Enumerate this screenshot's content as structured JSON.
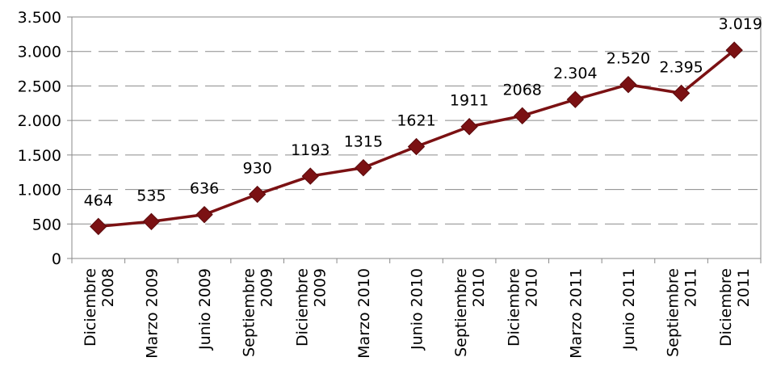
{
  "chart_data": {
    "type": "line",
    "title": "",
    "xlabel": "",
    "ylabel": "",
    "ylim": [
      0,
      3500
    ],
    "y_ticks": [
      0,
      500,
      1000,
      1500,
      2000,
      2500,
      3000,
      3500
    ],
    "y_tick_labels": [
      "0",
      "500",
      "1.000",
      "1.500",
      "2.000",
      "2.500",
      "3.000",
      "3.500"
    ],
    "grid": "horizontal dashed",
    "legend": "none",
    "marker": "diamond",
    "color": "#7b1113",
    "categories": [
      [
        "Diciembre",
        "2008"
      ],
      [
        "Marzo 2009"
      ],
      [
        "Junio 2009"
      ],
      [
        "Septiembre",
        "2009"
      ],
      [
        "Diciembre",
        "2009"
      ],
      [
        "Marzo 2010"
      ],
      [
        "Junio 2010"
      ],
      [
        "Septiembre",
        "2010"
      ],
      [
        "Diciembre",
        "2010"
      ],
      [
        "Marzo 2011"
      ],
      [
        "Junio 2011"
      ],
      [
        "Septiembre",
        "2011"
      ],
      [
        "Diciembre",
        "2011"
      ]
    ],
    "values": [
      464,
      535,
      636,
      930,
      1193,
      1315,
      1621,
      1911,
      2068,
      2304,
      2520,
      2395,
      3019
    ],
    "data_labels": [
      "464",
      "535",
      "636",
      "930",
      "1193",
      "1315",
      "1621",
      "1911",
      "2068",
      "2.304",
      "2.520",
      "2.395",
      "3.019"
    ]
  }
}
